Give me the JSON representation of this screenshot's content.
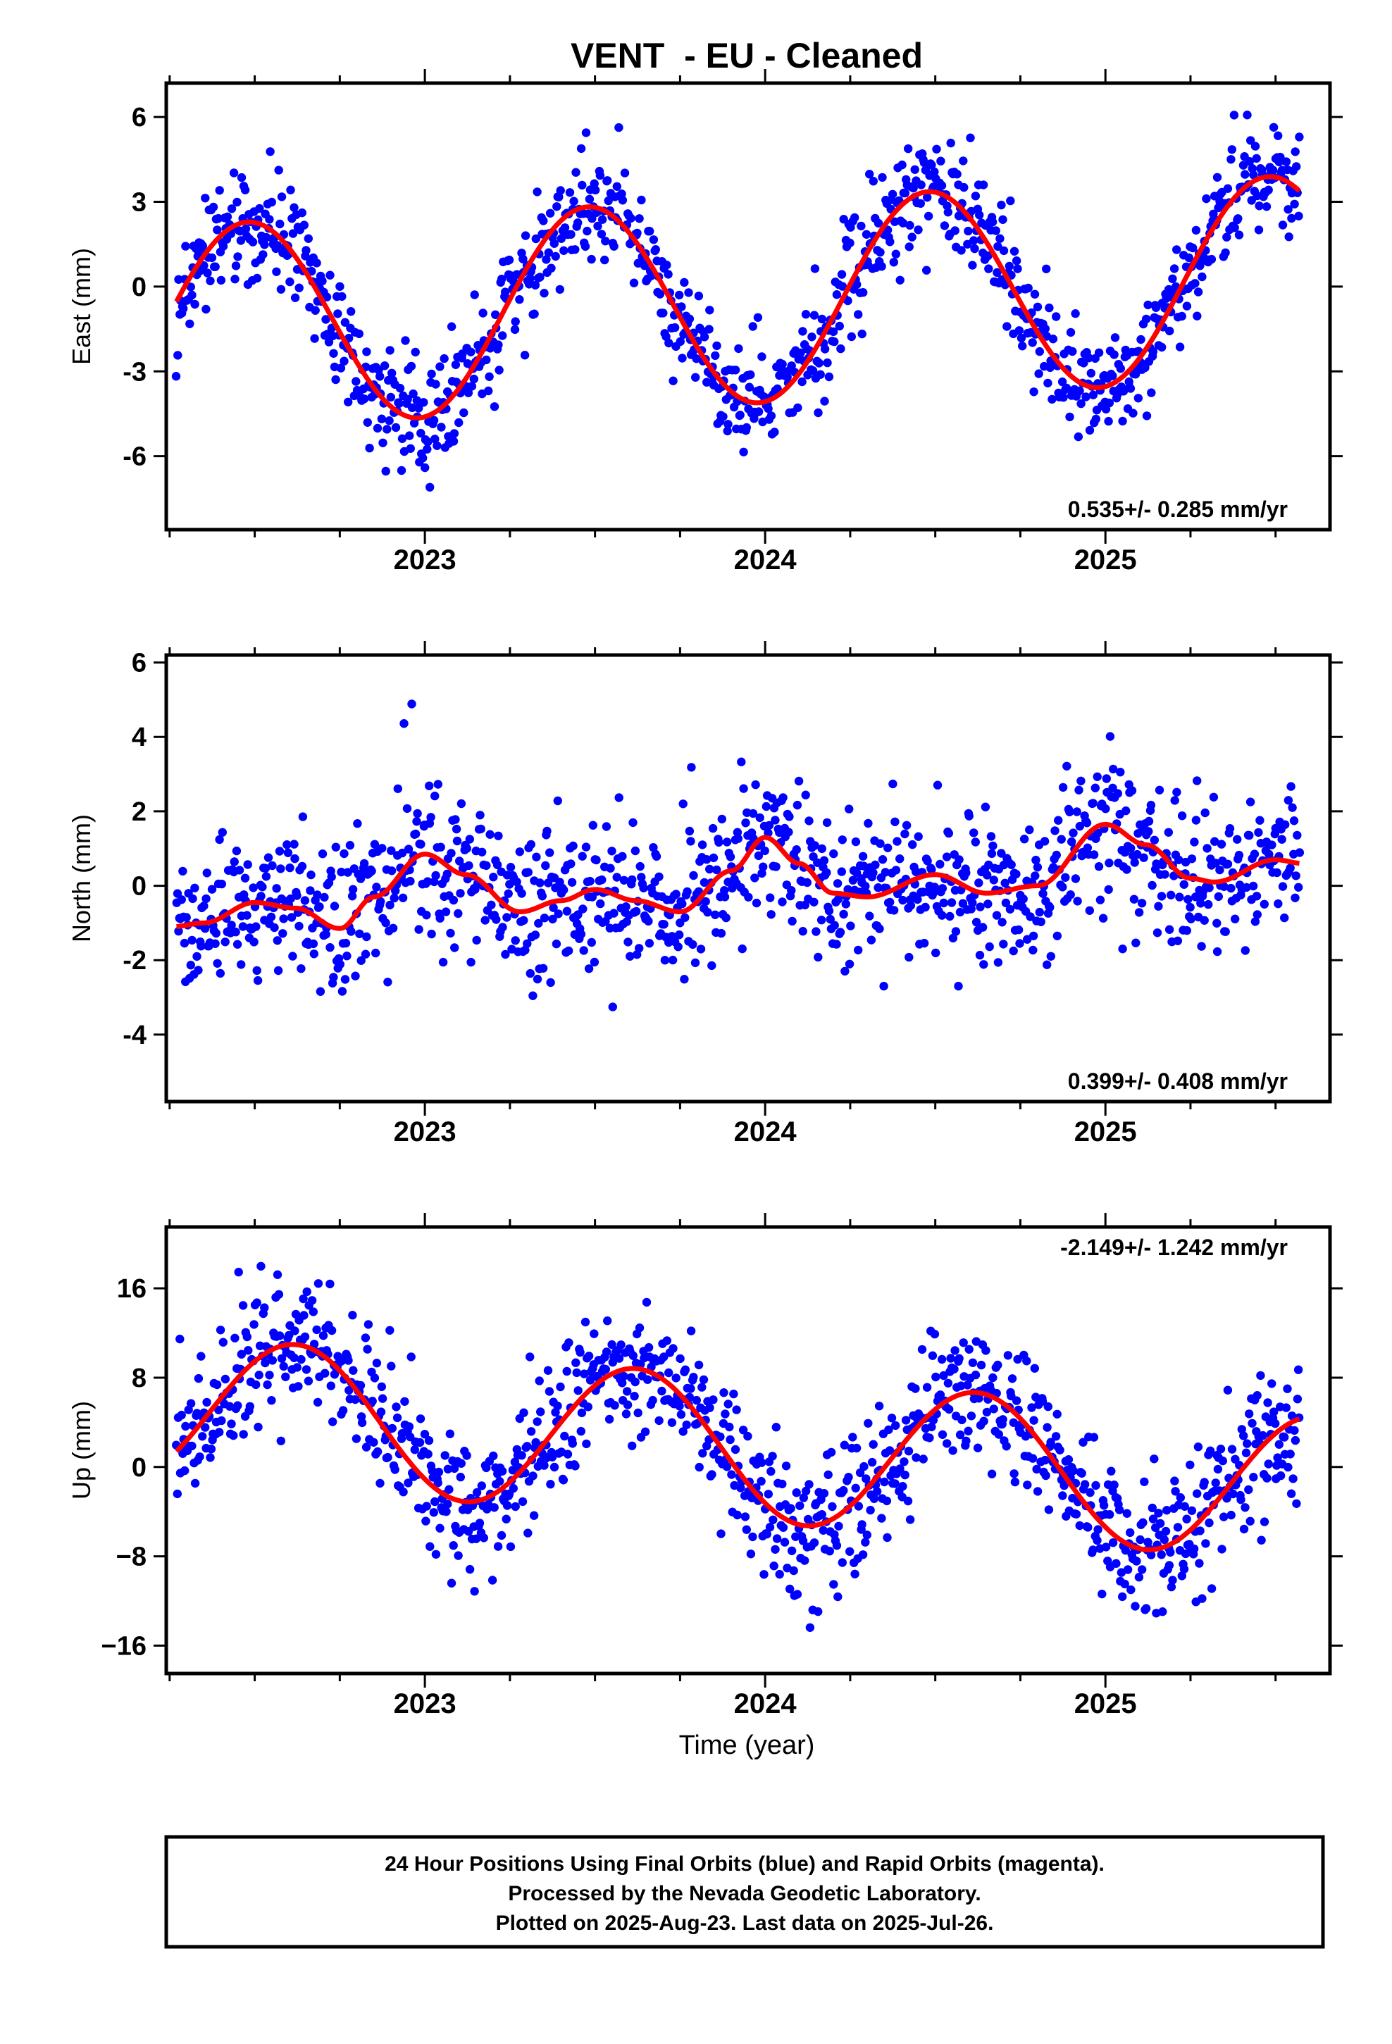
{
  "title": "VENT  - EU - Cleaned",
  "xlabel": "Time (year)",
  "footer": {
    "lines": [
      "24 Hour Positions Using Final Orbits (blue) and Rapid Orbits (magenta).",
      "Processed by the Nevada Geodetic Laboratory.",
      "Plotted on 2025-Aug-23. Last data on 2025-Jul-26."
    ]
  },
  "colors": {
    "points": "#0000ff",
    "fit": "#ff0000",
    "frame": "#000000"
  },
  "chart_data": [
    {
      "type": "scatter",
      "name": "east",
      "ylabel": "East (mm)",
      "xlim": [
        2022.24,
        2025.66
      ],
      "ylim": [
        -8.6,
        7.2
      ],
      "xticks": [
        2023,
        2024,
        2025
      ],
      "yticks": [
        -6,
        -3,
        0,
        3,
        6
      ],
      "yticklabels": [
        "-6",
        "-3",
        "0",
        "3",
        "6"
      ],
      "rate_text": "0.535+/- 0.285 mm/yr",
      "rate_position": "bottom-right",
      "fit": {
        "offset": -0.5,
        "trend": 0.535,
        "amplitude": 3.6,
        "phase_year": 2022.48
      },
      "scatter_sd": 0.95,
      "point_count": 1100
    },
    {
      "type": "scatter",
      "name": "north",
      "ylabel": "North (mm)",
      "xlim": [
        2022.24,
        2025.66
      ],
      "ylim": [
        -5.8,
        6.2
      ],
      "xticks": [
        2023,
        2024,
        2025
      ],
      "yticks": [
        -4,
        -2,
        0,
        2,
        4,
        6
      ],
      "yticklabels": [
        "-4",
        "-2",
        "0",
        "2",
        "4",
        "6"
      ],
      "rate_text": "0.399+/- 0.408 mm/yr",
      "rate_position": "bottom-right",
      "fit_points": [
        [
          2022.26,
          -1.1
        ],
        [
          2022.35,
          -1.0
        ],
        [
          2022.5,
          -0.45
        ],
        [
          2022.62,
          -0.6
        ],
        [
          2022.75,
          -1.15
        ],
        [
          2022.85,
          -0.3
        ],
        [
          2023.0,
          0.85
        ],
        [
          2023.12,
          0.3
        ],
        [
          2023.28,
          -0.7
        ],
        [
          2023.4,
          -0.4
        ],
        [
          2023.5,
          -0.1
        ],
        [
          2023.62,
          -0.4
        ],
        [
          2023.75,
          -0.7
        ],
        [
          2023.9,
          0.4
        ],
        [
          2024.0,
          1.3
        ],
        [
          2024.1,
          0.6
        ],
        [
          2024.2,
          -0.2
        ],
        [
          2024.3,
          -0.3
        ],
        [
          2024.5,
          0.3
        ],
        [
          2024.65,
          -0.2
        ],
        [
          2024.8,
          0.0
        ],
        [
          2025.0,
          1.65
        ],
        [
          2025.12,
          1.1
        ],
        [
          2025.25,
          0.2
        ],
        [
          2025.32,
          0.1
        ],
        [
          2025.5,
          0.7
        ],
        [
          2025.58,
          0.6
        ]
      ],
      "scatter_sd": 1.0,
      "point_count": 1100
    },
    {
      "type": "scatter",
      "name": "up",
      "ylabel": "Up (mm)",
      "xlim": [
        2022.24,
        2025.66
      ],
      "ylim": [
        -18.5,
        21.5
      ],
      "xticks": [
        2023,
        2024,
        2025
      ],
      "yticks": [
        -16,
        -8,
        0,
        8,
        16
      ],
      "yticklabels": [
        "−16",
        "−8",
        "0",
        "8",
        "16"
      ],
      "rate_text": "-2.149+/- 1.242 mm/yr",
      "rate_position": "top-right",
      "fit": {
        "offset": 1.5,
        "trend": -2.149,
        "amplitude": 6.5,
        "phase_year": 2022.62
      },
      "scatter_sd": 3.0,
      "point_count": 1100
    }
  ]
}
